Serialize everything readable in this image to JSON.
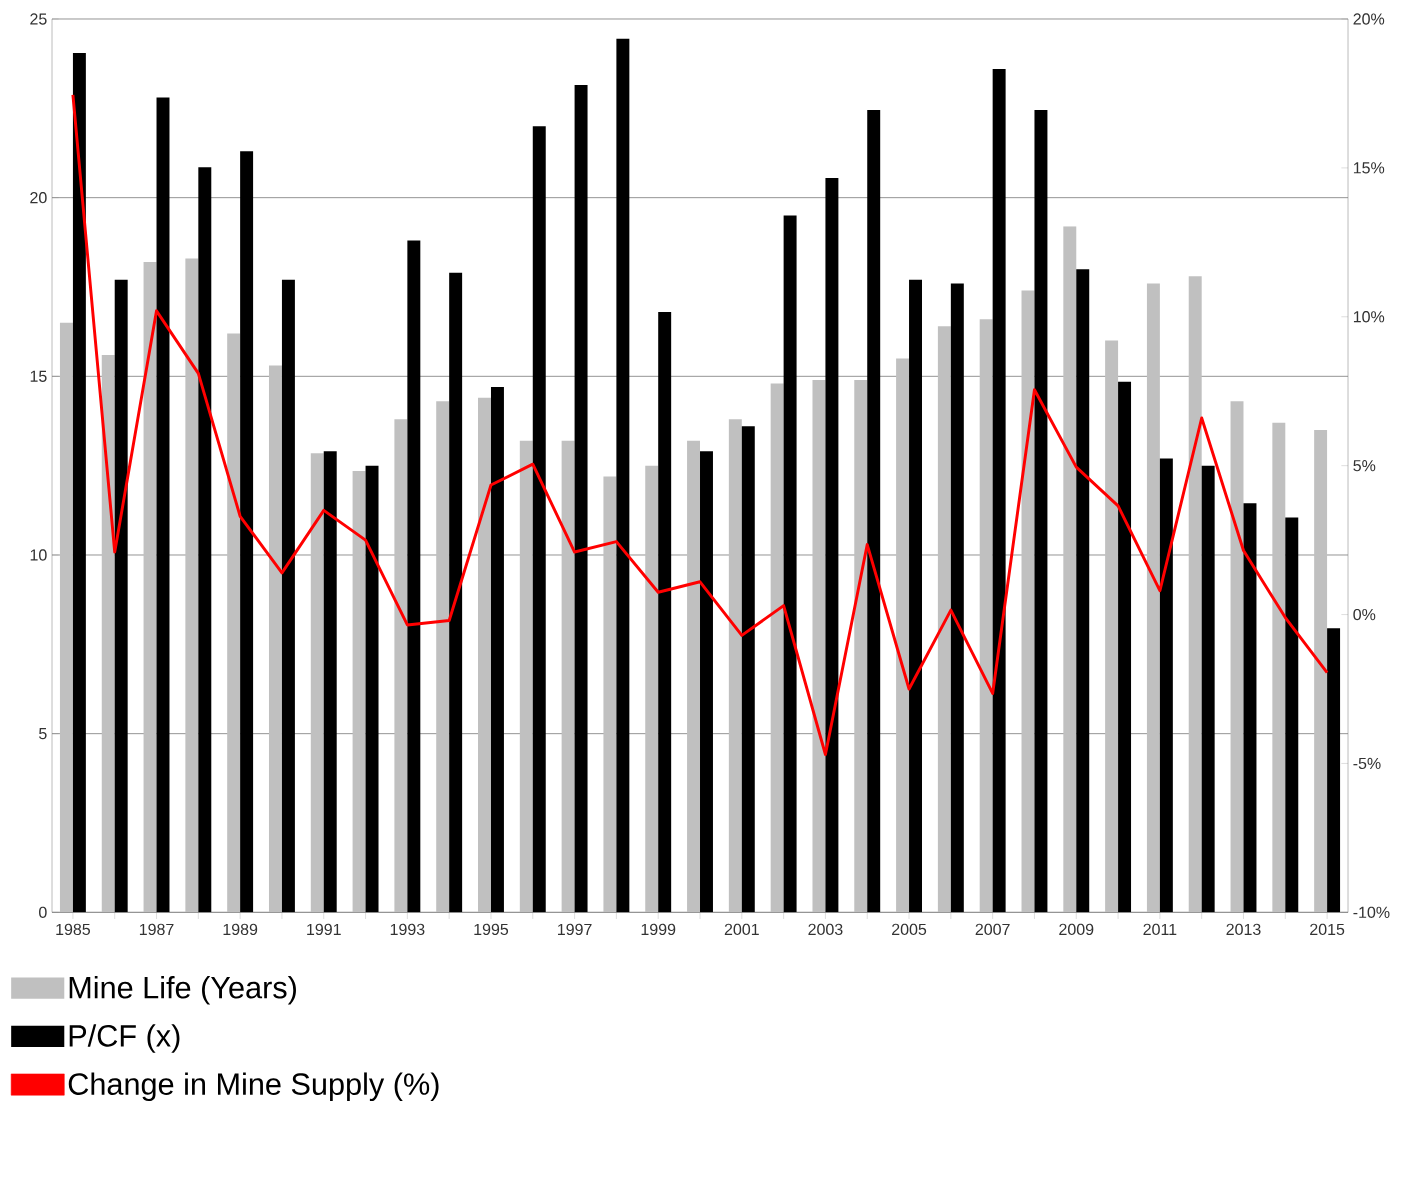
{
  "chart_data": {
    "type": "bar",
    "x": [
      1985,
      1986,
      1987,
      1988,
      1989,
      1990,
      1991,
      1992,
      1993,
      1994,
      1995,
      1996,
      1997,
      1998,
      1999,
      2000,
      2001,
      2002,
      2003,
      2004,
      2005,
      2006,
      2007,
      2008,
      2009,
      2010,
      2011,
      2012,
      2013,
      2014,
      2015
    ],
    "xlim": [
      1984.5,
      2015.5
    ],
    "xticks": [
      1985,
      1987,
      1989,
      1991,
      1993,
      1995,
      1997,
      1999,
      2001,
      2003,
      2005,
      2007,
      2009,
      2011,
      2013,
      2015
    ],
    "ylim": [
      0,
      25
    ],
    "yticks": [
      0,
      5,
      10,
      15,
      20,
      25
    ],
    "y2lim": [
      -10,
      20
    ],
    "y2ticks": [
      {
        "value": -10,
        "label": "-10%"
      },
      {
        "value": -5,
        "label": "-5%"
      },
      {
        "value": 0,
        "label": "0%"
      },
      {
        "value": 5,
        "label": "5%"
      },
      {
        "value": 10,
        "label": "10%"
      },
      {
        "value": 15,
        "label": "15%"
      },
      {
        "value": 20,
        "label": "20%"
      }
    ],
    "grid": "y",
    "legend": "bottom",
    "series": [
      {
        "name": "Mine Life (Years)",
        "color": "#c0c0c0",
        "values": [
          16.5,
          15.6,
          18.2,
          18.3,
          16.2,
          15.3,
          12.85,
          12.35,
          13.8,
          14.3,
          14.4,
          13.2,
          13.2,
          12.2,
          12.5,
          13.2,
          13.8,
          14.8,
          14.9,
          14.9,
          15.5,
          16.4,
          16.6,
          17.4,
          19.2,
          16.0,
          17.6,
          17.8,
          14.3,
          13.7,
          13.5
        ]
      },
      {
        "name": "P/CF (x)",
        "color": "#000000",
        "values": [
          24.05,
          17.7,
          22.8,
          20.85,
          21.3,
          17.7,
          12.9,
          12.5,
          18.8,
          17.9,
          14.7,
          22.0,
          23.15,
          24.45,
          16.8,
          12.9,
          13.6,
          19.5,
          20.55,
          22.45,
          17.7,
          17.6,
          23.6,
          22.45,
          18.0,
          14.85,
          12.7,
          12.5,
          11.45,
          11.05,
          7.95
        ]
      },
      {
        "name": "Change in Mine Supply (%)",
        "color": "#ff0000",
        "type": "line",
        "axis": "y2",
        "values": [
          17.45,
          2.1,
          10.2,
          8.1,
          3.3,
          1.4,
          3.5,
          2.5,
          -0.35,
          -0.2,
          4.35,
          5.05,
          2.1,
          2.45,
          0.75,
          1.1,
          -0.7,
          0.3,
          -4.7,
          2.35,
          -2.5,
          0.15,
          -2.65,
          7.55,
          4.95,
          3.65,
          0.8,
          6.6,
          2.15,
          -0.1,
          -1.95
        ]
      }
    ]
  }
}
